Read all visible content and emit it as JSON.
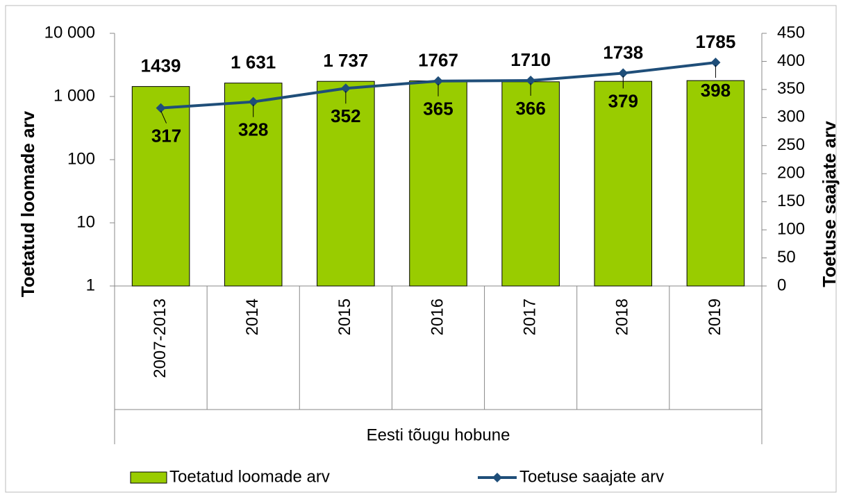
{
  "chart_data": {
    "type": "combo",
    "categories": [
      "2007-2013",
      "2014",
      "2015",
      "2016",
      "2017",
      "2018",
      "2019"
    ],
    "category_group": "Eesti tõugu hobune",
    "ylabel": "Toetatud loomade arv",
    "y2label": "Toetuse saajate arv",
    "ylog": true,
    "ylim": [
      1,
      10000
    ],
    "yticks": [
      1,
      10,
      100,
      {
        "value": 1000,
        "label": "1 000"
      },
      {
        "value": 10000,
        "label": "10 000"
      }
    ],
    "y2lim": [
      0,
      450
    ],
    "y2ticks": [
      0,
      50,
      100,
      150,
      200,
      250,
      300,
      350,
      400,
      450
    ],
    "legend": "bottom",
    "series": [
      {
        "name": "Toetatud loomade arv",
        "type": "bar",
        "color": "#99cc00",
        "values": [
          1439,
          1631,
          1737,
          1767,
          1710,
          1738,
          1785
        ],
        "value_labels": [
          "1439",
          "1 631",
          "1 737",
          "1767",
          "1710",
          "1738",
          "1785"
        ]
      },
      {
        "name": "Toetuse saajate arv",
        "type": "line",
        "axis": "y2",
        "color": "#1f4e79",
        "values": [
          317,
          328,
          352,
          365,
          366,
          379,
          398
        ]
      }
    ]
  }
}
